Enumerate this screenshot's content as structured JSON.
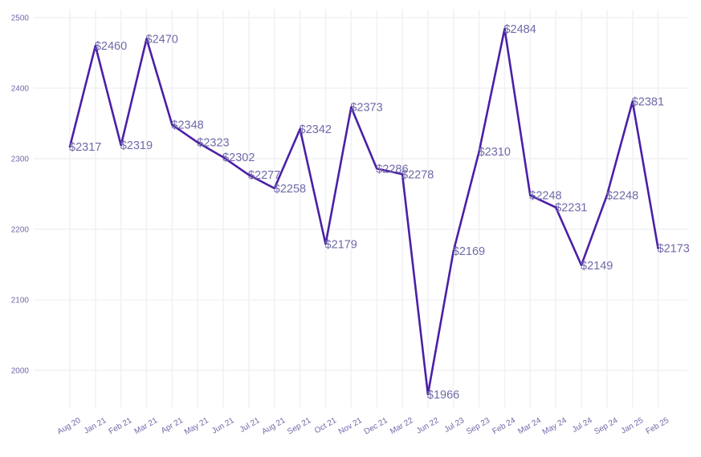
{
  "chart_data": {
    "type": "line",
    "title": "",
    "xlabel": "",
    "ylabel": "",
    "ylim": [
      1945,
      2510
    ],
    "y_ticks": [
      2000,
      2100,
      2200,
      2300,
      2400,
      2500
    ],
    "grid": true,
    "legend": "none",
    "colors": {
      "line": "#4B1FA6",
      "label_text": "#6E6AA8",
      "tick_text": "#6E6AA8",
      "grid": "#F2F2F6"
    },
    "categories": [
      "Aug 20",
      "Jan 21",
      "Feb 21",
      "Mar 21",
      "Apr 21",
      "May 21",
      "Jun 21",
      "Jul 21",
      "Aug 21",
      "Sep 21",
      "Oct 21",
      "Nov 21",
      "Dec 21",
      "Mar 22",
      "Jun 22",
      "Jul 23",
      "Sep 23",
      "Feb 24",
      "Mar 24",
      "May 24",
      "Jul 24",
      "Sep 24",
      "Jan 25",
      "Feb 25"
    ],
    "series": [
      {
        "values": [
          2317,
          2460,
          2319,
          2470,
          2348,
          2323,
          2302,
          2277,
          2258,
          2342,
          2179,
          2373,
          2286,
          2278,
          1966,
          2169,
          2310,
          2484,
          2248,
          2231,
          2149,
          2248,
          2381,
          2173
        ],
        "labels": [
          "$2317",
          "$2460",
          "$2319",
          "$2470",
          "$2348",
          "$2323",
          "$2302",
          "$2277",
          "$2258",
          "$2342",
          "$2179",
          "$2373",
          "$2286",
          "$2278",
          "$1966",
          "$2169",
          "$2310",
          "$2484",
          "$2248",
          "$2231",
          "$2149",
          "$2248",
          "$2381",
          "$2173"
        ]
      }
    ]
  }
}
